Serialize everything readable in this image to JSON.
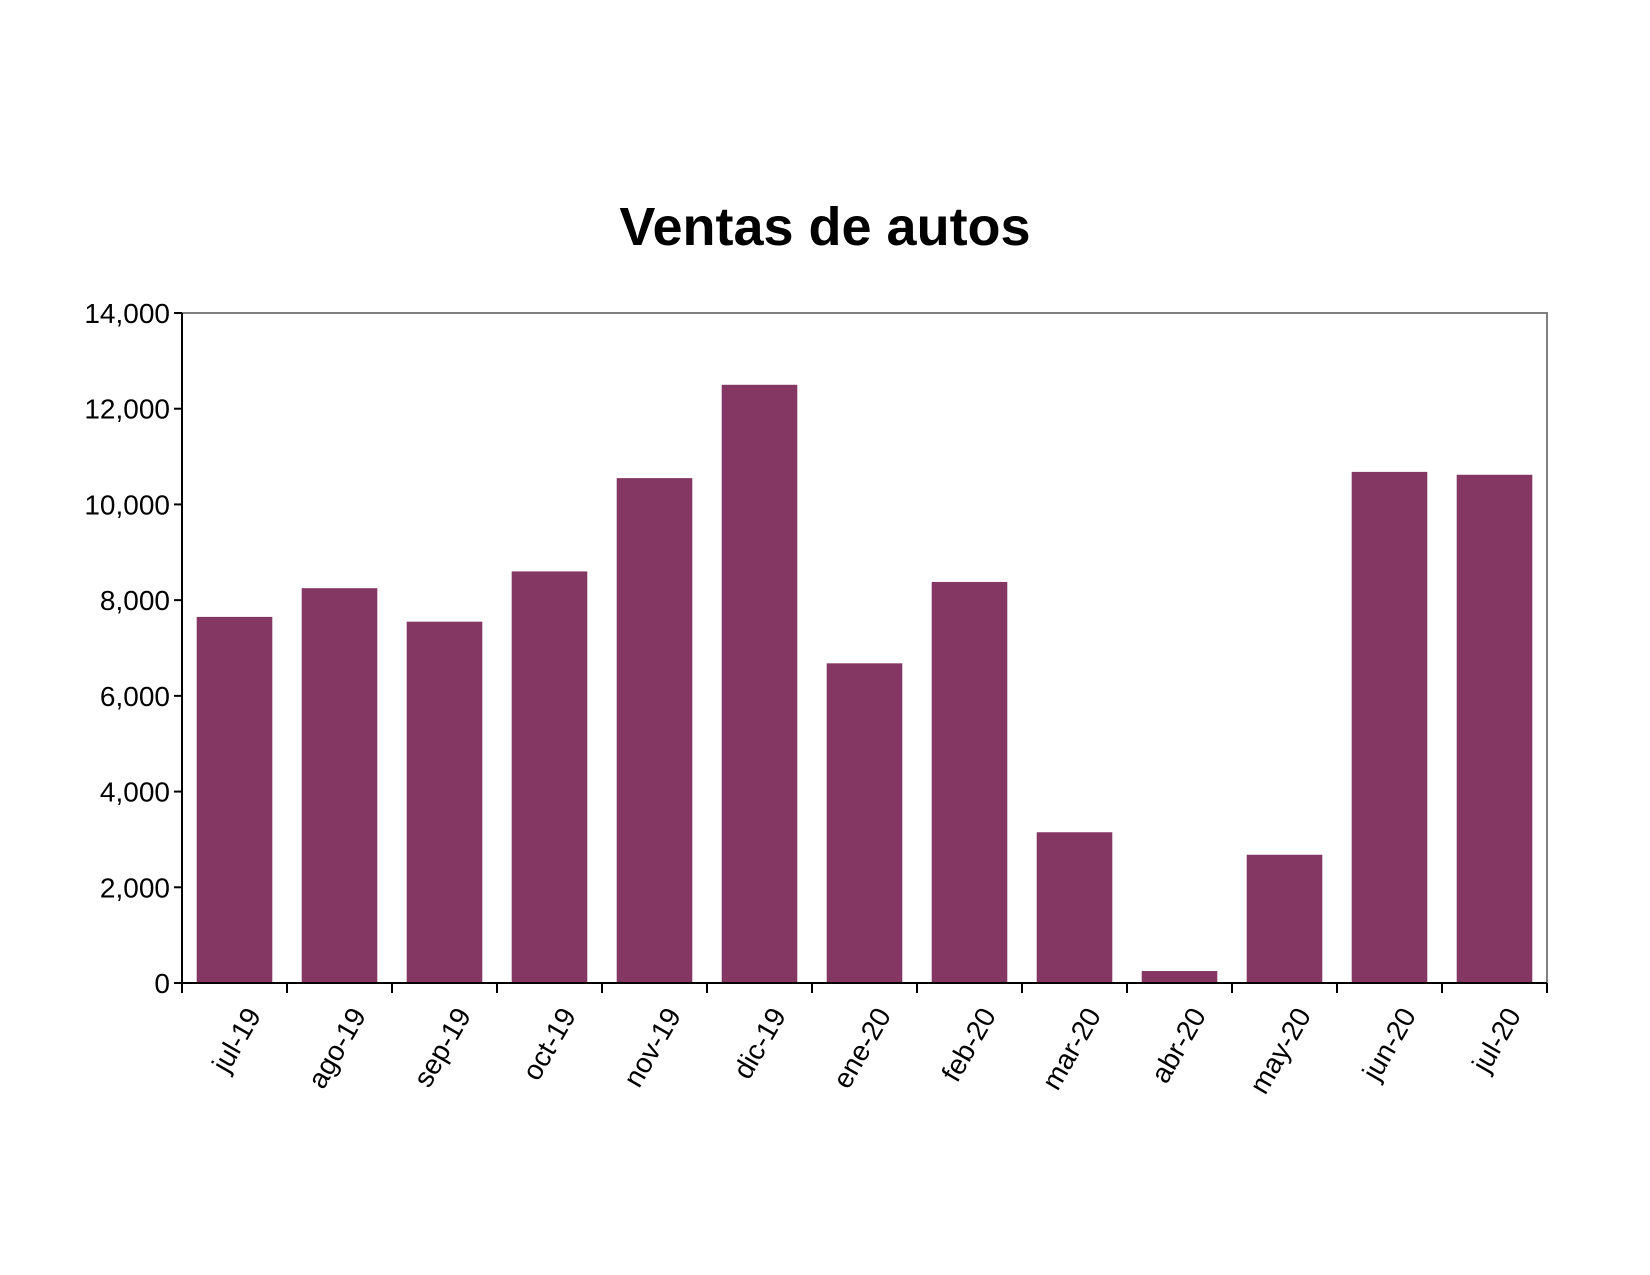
{
  "chart_data": {
    "type": "bar",
    "title": "Ventas de autos",
    "xlabel": "",
    "ylabel": "",
    "categories": [
      "jul-19",
      "ago-19",
      "sep-19",
      "oct-19",
      "nov-19",
      "dic-19",
      "ene-20",
      "feb-20",
      "mar-20",
      "abr-20",
      "may-20",
      "jun-20",
      "jul-20"
    ],
    "values": [
      7650,
      8250,
      7550,
      8600,
      10550,
      12500,
      6680,
      8380,
      3150,
      250,
      2680,
      10680,
      10620
    ],
    "ylim": [
      0,
      14000
    ],
    "yticks": [
      0,
      2000,
      4000,
      6000,
      8000,
      10000,
      12000,
      14000
    ],
    "ytick_labels": [
      "0",
      "2,000",
      "4,000",
      "6,000",
      "8,000",
      "10,000",
      "12,000",
      "14,000"
    ],
    "grid": false,
    "legend": "none",
    "bar_color": "#853764"
  }
}
